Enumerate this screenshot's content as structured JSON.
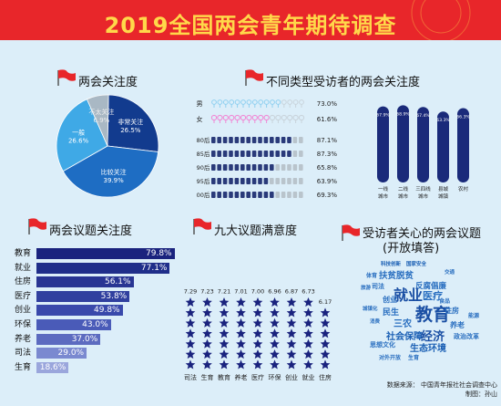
{
  "title": "2019全国两会青年期待调查",
  "sections": {
    "attention": "两会关注度",
    "visitor_types": "不同类型受访者的两会关注度",
    "topics": "两会议题关注度",
    "satisfaction": "九大议题满意度",
    "open": "受访者关心的两会议题",
    "open_sub": "(开放填答)"
  },
  "chart_data": [
    {
      "type": "pie",
      "labels": [
        "非常关注",
        "比较关注",
        "一般",
        "不太关注"
      ],
      "values": [
        26.5,
        39.9,
        26.6,
        6.9
      ],
      "colors": [
        "#123b8e",
        "#1e6dc3",
        "#3fa9e6",
        "#a9b8c4"
      ]
    },
    {
      "type": "bar",
      "orientation": "horizontal",
      "categories": [
        "男",
        "女"
      ],
      "values": [
        73.0,
        61.6
      ],
      "colors": [
        "#8fd0f0",
        "#f08bd6"
      ]
    },
    {
      "type": "bar",
      "orientation": "horizontal",
      "categories": [
        "80后",
        "85后",
        "90后",
        "95后",
        "00后"
      ],
      "values": [
        87.1,
        87.3,
        65.8,
        63.9,
        69.3
      ]
    },
    {
      "type": "bar",
      "categories": [
        "一线城市",
        "二线城市",
        "三四线城市",
        "县城城镇",
        "农村"
      ],
      "values": [
        67.9,
        68.9,
        67.4,
        63.3,
        66.3
      ],
      "color": "#1a2a7a"
    },
    {
      "type": "bar",
      "orientation": "horizontal",
      "categories": [
        "教育",
        "就业",
        "住房",
        "医疗",
        "创业",
        "环保",
        "养老",
        "司法",
        "生育"
      ],
      "values": [
        79.8,
        77.1,
        56.1,
        53.8,
        49.8,
        43.0,
        37.0,
        29.0,
        18.6
      ],
      "colors": [
        "#1a237e",
        "#1f2e8a",
        "#283593",
        "#30409f",
        "#3949ab",
        "#4a5bb8",
        "#5c6bc0",
        "#7a89d0",
        "#9aa6dc"
      ]
    },
    {
      "type": "bar",
      "categories": [
        "司法",
        "生育",
        "教育",
        "养老",
        "医疗",
        "环保",
        "创业",
        "就业",
        "住房"
      ],
      "values": [
        7.29,
        7.23,
        7.21,
        7.01,
        7.0,
        6.96,
        6.87,
        6.73,
        6.17
      ],
      "ylim": [
        0,
        10
      ],
      "color": "#1a237e"
    }
  ],
  "word_cloud": [
    {
      "text": "科技创新",
      "color": "#1a5fb4"
    },
    {
      "text": "国家安全",
      "color": "#1a5fb4"
    },
    {
      "text": "扶贫脱贫",
      "color": "#2a6fc0"
    },
    {
      "text": "交通",
      "color": "#2a6fc0"
    },
    {
      "text": "体育",
      "color": "#2a6fc0"
    },
    {
      "text": "旅游",
      "color": "#2a6fc0"
    },
    {
      "text": "司法",
      "color": "#2a6fc0"
    },
    {
      "text": "反腐倡廉",
      "color": "#2a6fc0"
    },
    {
      "text": "就业",
      "color": "#1a4fa4"
    },
    {
      "text": "医疗",
      "color": "#2a6fc0"
    },
    {
      "text": "创业",
      "color": "#2a6fc0"
    },
    {
      "text": "食品",
      "color": "#2a6fc0"
    },
    {
      "text": "城镇化",
      "color": "#2a6fc0"
    },
    {
      "text": "民生",
      "color": "#2a6fc0"
    },
    {
      "text": "教育",
      "color": "#1a4fa4"
    },
    {
      "text": "住房",
      "color": "#2a6fc0"
    },
    {
      "text": "能源",
      "color": "#2a6fc0"
    },
    {
      "text": "消费",
      "color": "#2a6fc0"
    },
    {
      "text": "三农",
      "color": "#2a6fc0"
    },
    {
      "text": "养老",
      "color": "#2a6fc0"
    },
    {
      "text": "社会保障",
      "color": "#1a5fb4"
    },
    {
      "text": "经济",
      "color": "#1a4fa4"
    },
    {
      "text": "政治改革",
      "color": "#2a6fc0"
    },
    {
      "text": "思想文化",
      "color": "#2a6fc0"
    },
    {
      "text": "生态环境",
      "color": "#1a5fb4"
    },
    {
      "text": "对外开放",
      "color": "#2a6fc0"
    },
    {
      "text": "生育",
      "color": "#2a6fc0"
    }
  ],
  "source": "数据来源：  中国青年报社社会调查中心",
  "author": "制图：孙山",
  "colors": {
    "header": "#e8262a",
    "title": "#ffd84a",
    "background": "#dceef9",
    "navy": "#1a237e"
  }
}
